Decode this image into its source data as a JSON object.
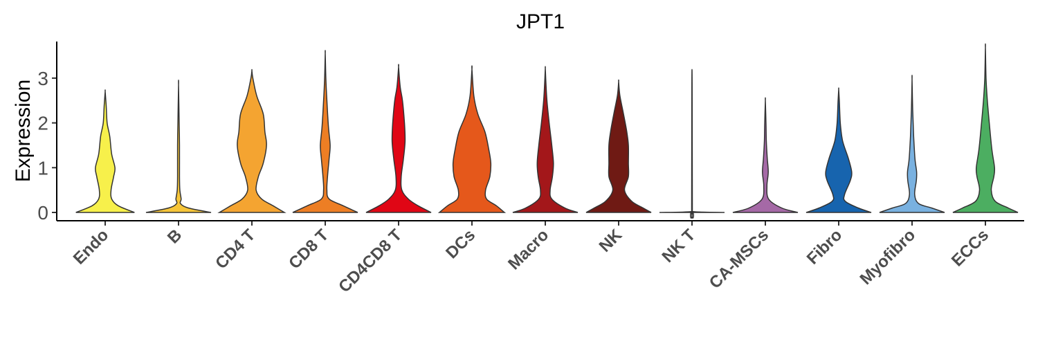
{
  "chart_data": {
    "type": "violin",
    "title": "JPT1",
    "xlabel": "",
    "ylabel": "Expression",
    "ylim": [
      -0.2,
      3.85
    ],
    "yticks": [
      0,
      1,
      2,
      3
    ],
    "grid": false,
    "legend": "none",
    "categories": [
      "Endo",
      "B",
      "CD4 T",
      "CD8 T",
      "CD4CD8 T",
      "DCs",
      "Macro",
      "NK",
      "NK T",
      "CA-MSCs",
      "Fibro",
      "Myofibro",
      "ECCs"
    ],
    "series": [
      {
        "category": "Endo",
        "color": "#F7F04B",
        "max": 2.7,
        "profile": [
          [
            0,
            0.9
          ],
          [
            0.15,
            0.4
          ],
          [
            0.3,
            0.2
          ],
          [
            0.5,
            0.18
          ],
          [
            0.8,
            0.26
          ],
          [
            1.0,
            0.3
          ],
          [
            1.3,
            0.2
          ],
          [
            1.7,
            0.14
          ],
          [
            2.0,
            0.06
          ],
          [
            2.4,
            0.03
          ],
          [
            2.7,
            0
          ]
        ]
      },
      {
        "category": "B",
        "color": "#F6C53A",
        "max": 2.85,
        "profile": [
          [
            0,
            1.0
          ],
          [
            0.1,
            0.3
          ],
          [
            0.2,
            0.06
          ],
          [
            0.3,
            0.08
          ],
          [
            0.5,
            0.04
          ],
          [
            0.8,
            0.03
          ],
          [
            1.5,
            0.03
          ],
          [
            2.0,
            0.02
          ],
          [
            2.85,
            0
          ]
        ]
      },
      {
        "category": "CD4 T",
        "color": "#F4A431",
        "max": 3.17,
        "profile": [
          [
            0,
            1.0
          ],
          [
            0.15,
            0.65
          ],
          [
            0.3,
            0.3
          ],
          [
            0.5,
            0.13
          ],
          [
            0.8,
            0.2
          ],
          [
            1.1,
            0.35
          ],
          [
            1.5,
            0.45
          ],
          [
            1.8,
            0.4
          ],
          [
            2.2,
            0.35
          ],
          [
            2.6,
            0.15
          ],
          [
            3.0,
            0.03
          ],
          [
            3.17,
            0
          ]
        ]
      },
      {
        "category": "CD8 T",
        "color": "#ED7E24",
        "max": 3.55,
        "profile": [
          [
            0,
            1.0
          ],
          [
            0.15,
            0.55
          ],
          [
            0.3,
            0.12
          ],
          [
            0.5,
            0.05
          ],
          [
            0.8,
            0.07
          ],
          [
            1.2,
            0.12
          ],
          [
            1.5,
            0.15
          ],
          [
            1.9,
            0.1
          ],
          [
            2.5,
            0.05
          ],
          [
            3.0,
            0.02
          ],
          [
            3.55,
            0
          ]
        ]
      },
      {
        "category": "CD4CD8 T",
        "color": "#E00615",
        "max": 3.25,
        "profile": [
          [
            0,
            1.0
          ],
          [
            0.15,
            0.6
          ],
          [
            0.3,
            0.3
          ],
          [
            0.5,
            0.1
          ],
          [
            0.8,
            0.08
          ],
          [
            1.2,
            0.15
          ],
          [
            1.6,
            0.2
          ],
          [
            2.0,
            0.18
          ],
          [
            2.5,
            0.12
          ],
          [
            2.8,
            0.05
          ],
          [
            3.25,
            0
          ]
        ]
      },
      {
        "category": "DCs",
        "color": "#E5581B",
        "max": 3.2,
        "profile": [
          [
            0,
            1.0
          ],
          [
            0.15,
            0.75
          ],
          [
            0.3,
            0.45
          ],
          [
            0.5,
            0.42
          ],
          [
            0.8,
            0.55
          ],
          [
            1.1,
            0.58
          ],
          [
            1.4,
            0.52
          ],
          [
            1.8,
            0.4
          ],
          [
            2.2,
            0.18
          ],
          [
            2.6,
            0.06
          ],
          [
            3.2,
            0
          ]
        ]
      },
      {
        "category": "Macro",
        "color": "#A3171A",
        "max": 3.22,
        "profile": [
          [
            0,
            1.0
          ],
          [
            0.1,
            0.6
          ],
          [
            0.3,
            0.2
          ],
          [
            0.5,
            0.15
          ],
          [
            0.8,
            0.22
          ],
          [
            1.1,
            0.25
          ],
          [
            1.5,
            0.2
          ],
          [
            2.0,
            0.12
          ],
          [
            2.5,
            0.05
          ],
          [
            2.9,
            0.02
          ],
          [
            3.22,
            0
          ]
        ]
      },
      {
        "category": "NK",
        "color": "#6F1A14",
        "max": 2.92,
        "profile": [
          [
            0,
            1.0
          ],
          [
            0.1,
            0.75
          ],
          [
            0.25,
            0.4
          ],
          [
            0.5,
            0.18
          ],
          [
            0.8,
            0.3
          ],
          [
            1.1,
            0.3
          ],
          [
            1.5,
            0.3
          ],
          [
            1.8,
            0.25
          ],
          [
            2.2,
            0.15
          ],
          [
            2.6,
            0.04
          ],
          [
            2.92,
            0
          ]
        ]
      },
      {
        "category": "NK T",
        "color": "#E8E8E8",
        "max": 2.85,
        "profile": [
          [
            0,
            1.0
          ],
          [
            0.02,
            0.03
          ],
          [
            0.1,
            0.01
          ],
          [
            2.85,
            0.005
          ]
        ]
      },
      {
        "category": "CA-MSCs",
        "color": "#A569A6",
        "max": 2.5,
        "profile": [
          [
            0,
            1.0
          ],
          [
            0.1,
            0.5
          ],
          [
            0.3,
            0.1
          ],
          [
            0.6,
            0.05
          ],
          [
            0.9,
            0.09
          ],
          [
            1.2,
            0.06
          ],
          [
            1.6,
            0.03
          ],
          [
            2.0,
            0.02
          ],
          [
            2.5,
            0
          ]
        ]
      },
      {
        "category": "Fibro",
        "color": "#1764AE",
        "max": 2.75,
        "profile": [
          [
            0,
            1.0
          ],
          [
            0.1,
            0.6
          ],
          [
            0.25,
            0.2
          ],
          [
            0.4,
            0.18
          ],
          [
            0.7,
            0.35
          ],
          [
            0.9,
            0.4
          ],
          [
            1.2,
            0.3
          ],
          [
            1.6,
            0.12
          ],
          [
            2.0,
            0.05
          ],
          [
            2.5,
            0.02
          ],
          [
            2.75,
            0
          ]
        ]
      },
      {
        "category": "Myofibro",
        "color": "#79B1E0",
        "max": 2.98,
        "profile": [
          [
            0,
            1.0
          ],
          [
            0.1,
            0.6
          ],
          [
            0.2,
            0.2
          ],
          [
            0.4,
            0.08
          ],
          [
            0.7,
            0.13
          ],
          [
            0.9,
            0.14
          ],
          [
            1.2,
            0.09
          ],
          [
            1.7,
            0.05
          ],
          [
            2.3,
            0.02
          ],
          [
            2.98,
            0
          ]
        ]
      },
      {
        "category": "ECCs",
        "color": "#4CAE61",
        "max": 3.68,
        "profile": [
          [
            0,
            1.0
          ],
          [
            0.1,
            0.7
          ],
          [
            0.25,
            0.3
          ],
          [
            0.5,
            0.18
          ],
          [
            0.8,
            0.26
          ],
          [
            1.0,
            0.28
          ],
          [
            1.4,
            0.2
          ],
          [
            2.0,
            0.12
          ],
          [
            2.5,
            0.06
          ],
          [
            3.0,
            0.02
          ],
          [
            3.68,
            0
          ]
        ]
      }
    ]
  }
}
